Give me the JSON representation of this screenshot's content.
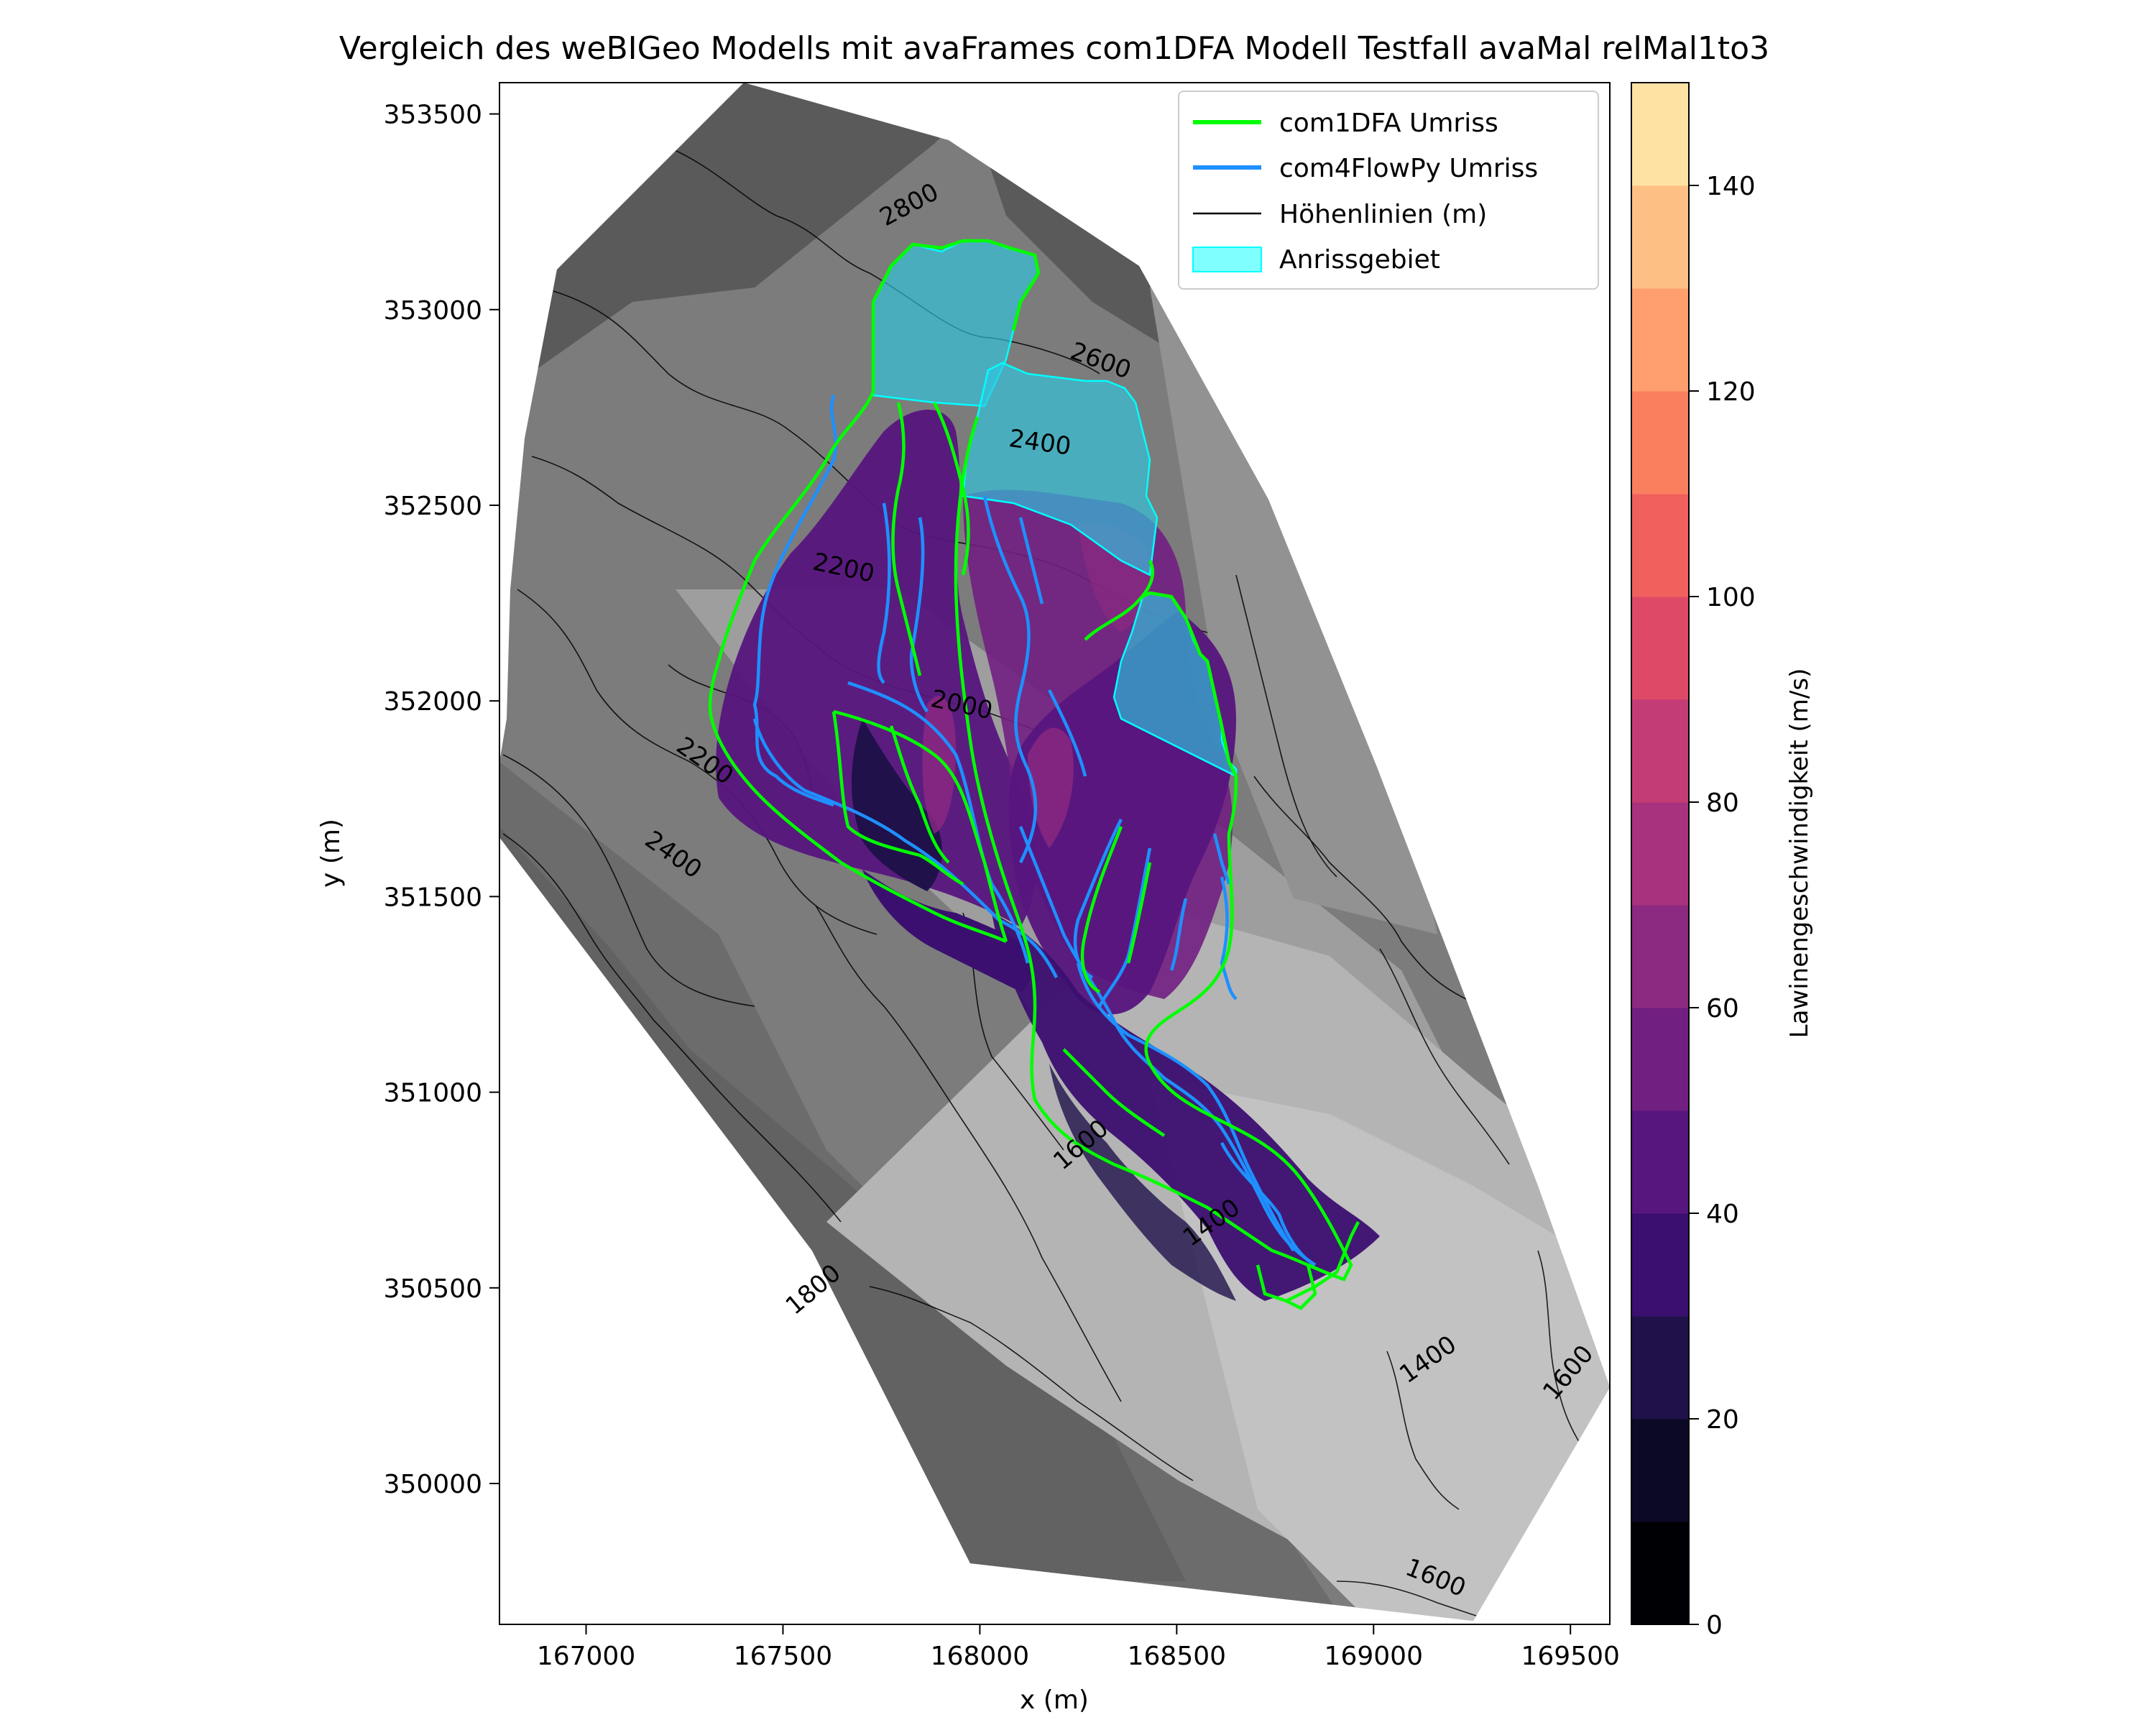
{
  "chart_data": {
    "type": "contour-map",
    "title": "Vergleich des weBIGeo Modells mit avaFrames com1DFA Modell Testfall avaMal relMal1to3",
    "xlabel": "x (m)",
    "ylabel": "y (m)",
    "xlim": [
      166780,
      169600
    ],
    "ylim": [
      349640,
      353580
    ],
    "xticks": [
      167000,
      167500,
      168000,
      168500,
      169000,
      169500
    ],
    "yticks": [
      350000,
      350500,
      351000,
      351500,
      352000,
      352500,
      353000,
      353500
    ],
    "colorbar": {
      "label": "Lawinengeschwindigkeit (m/s)",
      "min": 0,
      "max": 150,
      "ticks": [
        0,
        20,
        40,
        60,
        80,
        100,
        120,
        140
      ],
      "levels": [
        0,
        10,
        20,
        30,
        40,
        50,
        60,
        70,
        80,
        90,
        100,
        110,
        120,
        130,
        140,
        150
      ],
      "colors": [
        "#000004",
        "#0b0924",
        "#20114b",
        "#3b0f70",
        "#57157e",
        "#711f81",
        "#8c2981",
        "#a8327d",
        "#c43c75",
        "#de4968",
        "#f1605d",
        "#fa7f5e",
        "#fe9f6d",
        "#febf84",
        "#fde2a3"
      ]
    },
    "legend": {
      "placement": "top-right",
      "entries": [
        {
          "label": "com1DFA Umriss",
          "color": "#00ff00",
          "kind": "line"
        },
        {
          "label": "com4FlowPy Umriss",
          "color": "#1e90ff",
          "kind": "line"
        },
        {
          "label": "Höhenlinien (m)",
          "color": "#000000",
          "kind": "line"
        },
        {
          "label": "Anrissgebiet",
          "color": "#00ffff",
          "kind": "patch"
        }
      ]
    },
    "contour_labels": [
      {
        "text": "2800",
        "x": 167830,
        "y": 353250
      },
      {
        "text": "2600",
        "x": 168300,
        "y": 352850
      },
      {
        "text": "2400",
        "x": 168150,
        "y": 352640
      },
      {
        "text": "2200",
        "x": 167650,
        "y": 352320
      },
      {
        "text": "2000",
        "x": 167950,
        "y": 351970
      },
      {
        "text": "2200",
        "x": 167290,
        "y": 351830
      },
      {
        "text": "2400",
        "x": 167210,
        "y": 351590
      },
      {
        "text": "1600",
        "x": 168270,
        "y": 350850
      },
      {
        "text": "1400",
        "x": 168600,
        "y": 350650
      },
      {
        "text": "1800",
        "x": 167590,
        "y": 350480
      },
      {
        "text": "1400",
        "x": 169150,
        "y": 350300
      },
      {
        "text": "1600",
        "x": 169510,
        "y": 350270
      },
      {
        "text": "1600",
        "x": 169150,
        "y": 349740
      }
    ]
  }
}
